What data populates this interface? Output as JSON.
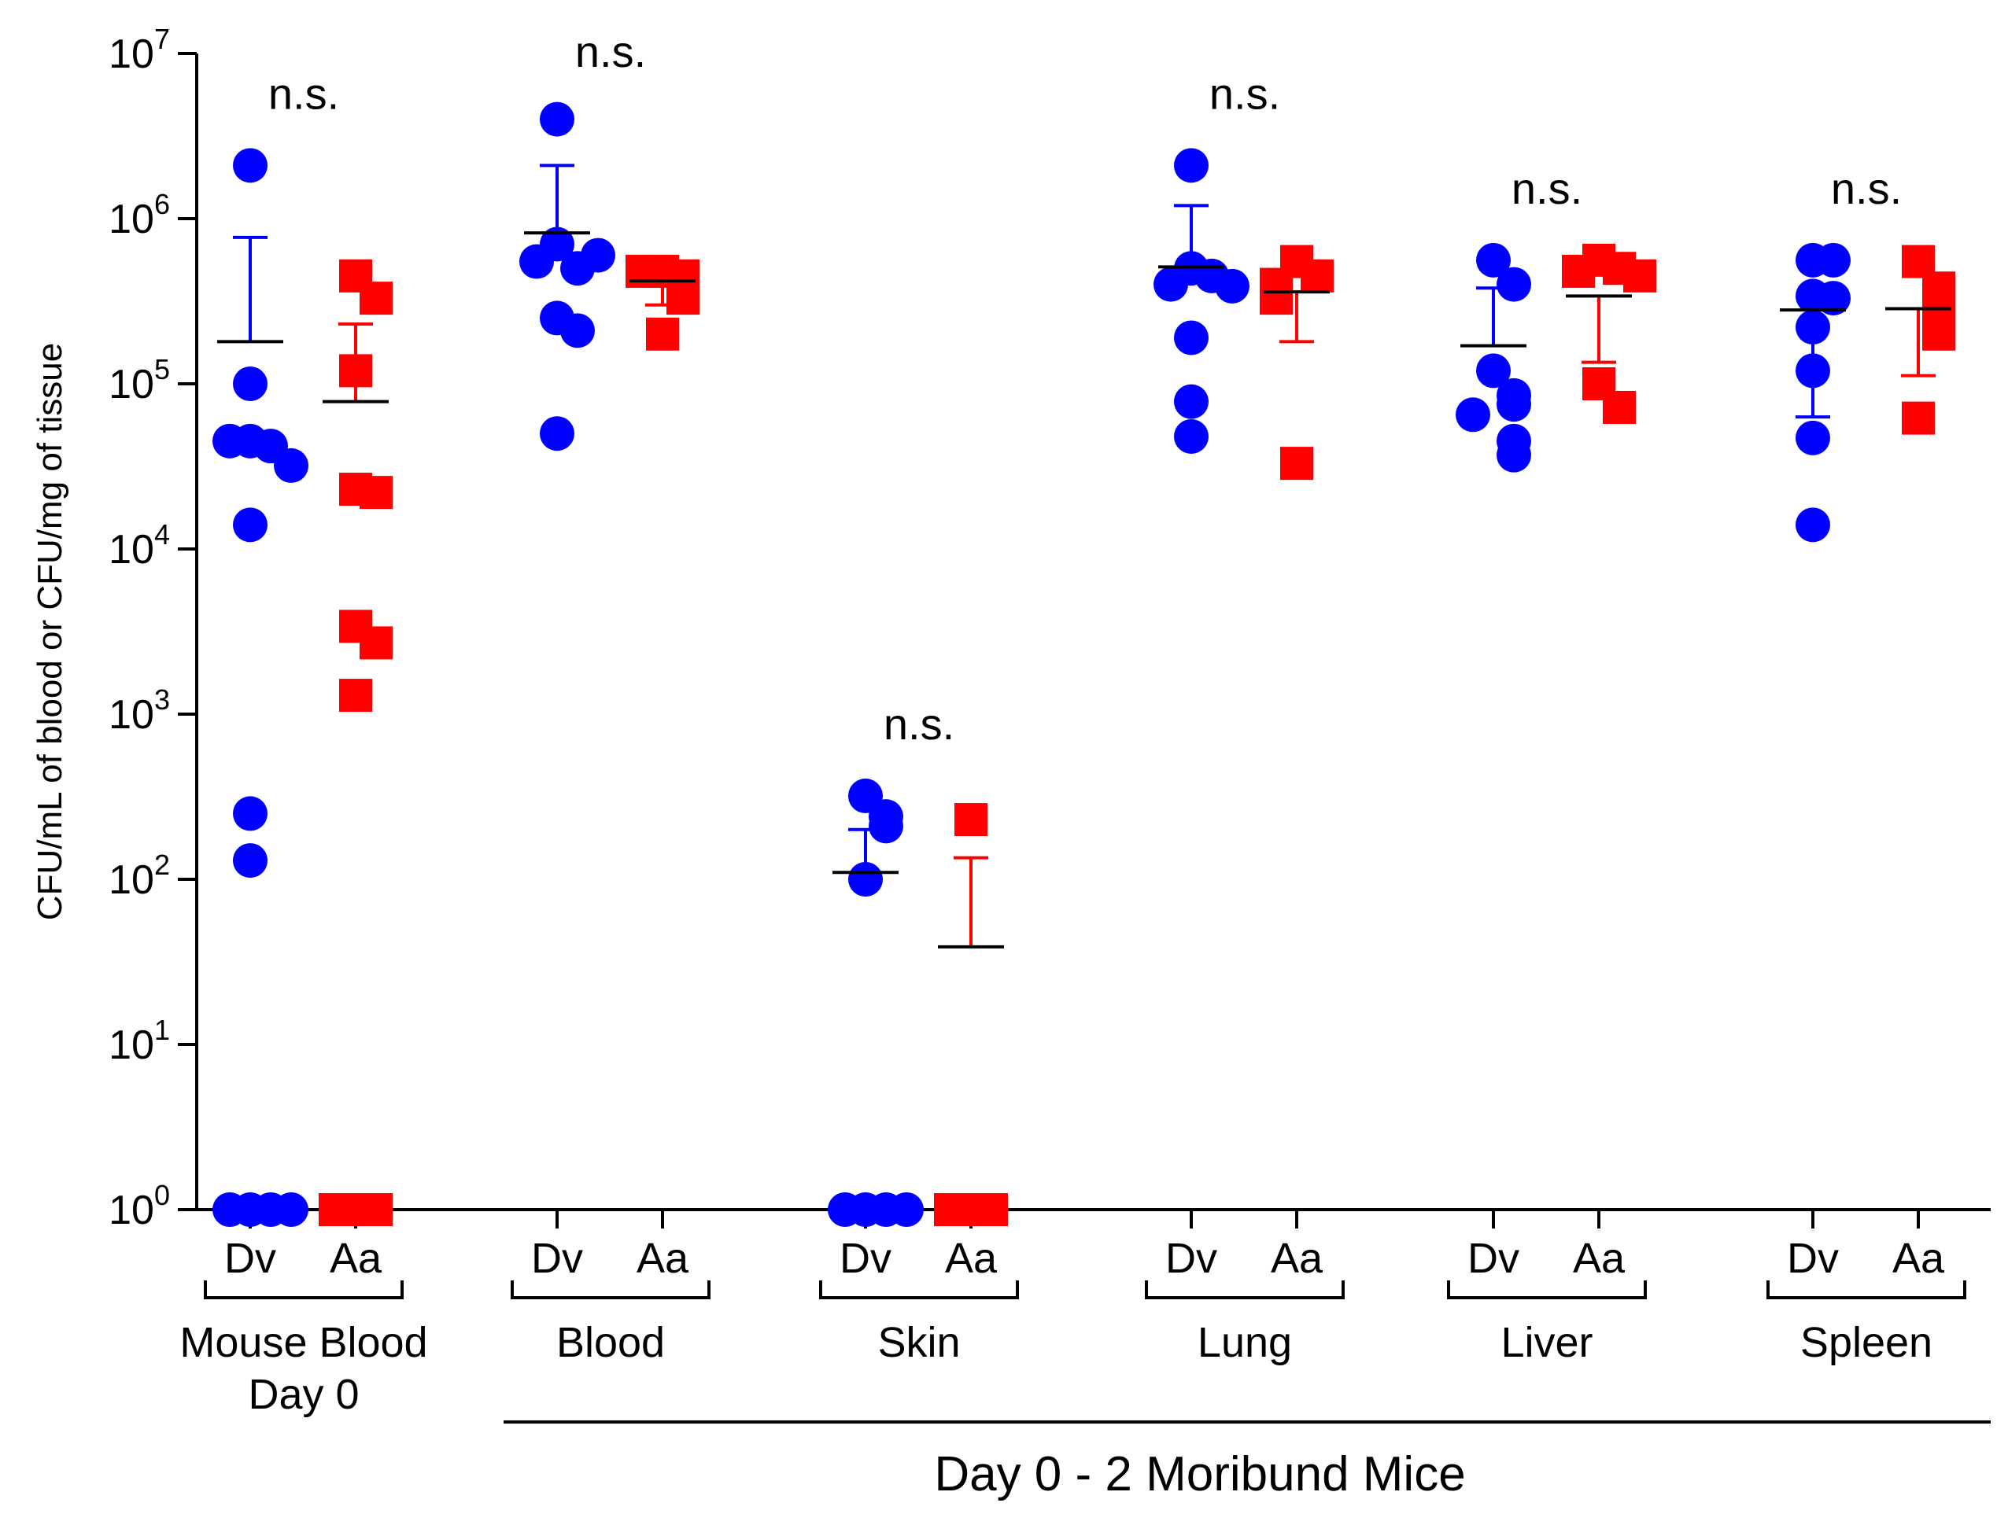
{
  "chart_data": {
    "type": "scatter",
    "title": "",
    "ylabel": "CFU/mL of blood or CFU/mg of tissue",
    "xlabel": "Day 0 - 2 Moribund Mice",
    "yscale": "log",
    "ylim": [
      1,
      10000000
    ],
    "y_ticks": [
      {
        "base": "10",
        "exp": "0",
        "value": 1
      },
      {
        "base": "10",
        "exp": "1",
        "value": 10
      },
      {
        "base": "10",
        "exp": "2",
        "value": 100
      },
      {
        "base": "10",
        "exp": "3",
        "value": 1000
      },
      {
        "base": "10",
        "exp": "4",
        "value": 10000
      },
      {
        "base": "10",
        "exp": "5",
        "value": 100000
      },
      {
        "base": "10",
        "exp": "6",
        "value": 1000000
      },
      {
        "base": "10",
        "exp": "7",
        "value": 10000000
      }
    ],
    "legend": [
      {
        "name": "Dv",
        "marker": "circle",
        "color": "#0000FF"
      },
      {
        "name": "Aa",
        "marker": "square",
        "color": "#FF0000"
      }
    ],
    "mean_line_color": "#000000",
    "groups": [
      {
        "label_lines": [
          "Mouse Blood",
          "Day 0"
        ],
        "significance": "n.s.",
        "series": [
          {
            "name": "Dv",
            "values": [
              2100000,
              100000,
              45000,
              42000,
              45000,
              32000,
              14000,
              250,
              130,
              1,
              1,
              1,
              1
            ],
            "mean": 180000,
            "error_upper": 770000
          },
          {
            "name": "Aa",
            "values": [
              450000,
              330000,
              120000,
              23000,
              22000,
              3400,
              2700,
              1300,
              1,
              1,
              1
            ],
            "mean": 78000,
            "error_upper": 230000
          }
        ]
      },
      {
        "label_lines": [
          "Blood"
        ],
        "significance": "n.s.",
        "series": [
          {
            "name": "Dv",
            "values": [
              4000000,
              700000,
              500000,
              550000,
              600000,
              250000,
              210000,
              50000
            ],
            "mean": 820000,
            "error_upper": 2100000
          },
          {
            "name": "Aa",
            "values": [
              480000,
              450000,
              480000,
              330000,
              200000
            ],
            "mean": 420000,
            "error_lower": 300000
          }
        ]
      },
      {
        "label_lines": [
          "Skin"
        ],
        "significance": "n.s.",
        "series": [
          {
            "name": "Dv",
            "values": [
              320,
              240,
              210,
              100,
              1,
              1,
              1,
              1
            ],
            "mean": 110,
            "error_upper": 200
          },
          {
            "name": "Aa",
            "values": [
              230,
              1,
              1,
              1
            ],
            "mean": 39,
            "error_upper": 135
          }
        ]
      },
      {
        "label_lines": [
          "Lung"
        ],
        "significance": "n.s.",
        "series": [
          {
            "name": "Dv",
            "values": [
              2100000,
              500000,
              450000,
              400000,
              390000,
              190000,
              78000,
              48000
            ],
            "mean": 510000,
            "error_upper": 1200000
          },
          {
            "name": "Aa",
            "values": [
              550000,
              450000,
              400000,
              330000,
              33000
            ],
            "mean": 360000,
            "error_lower": 180000
          }
        ]
      },
      {
        "label_lines": [
          "Liver"
        ],
        "significance": "n.s.",
        "series": [
          {
            "name": "Dv",
            "values": [
              560000,
              400000,
              120000,
              85000,
              75000,
              65000,
              45000,
              37000
            ],
            "mean": 170000,
            "error_upper": 380000
          },
          {
            "name": "Aa",
            "values": [
              560000,
              500000,
              480000,
              450000,
              100000,
              72000
            ],
            "mean": 340000,
            "error_lower": 135000
          }
        ]
      },
      {
        "label_lines": [
          "Spleen"
        ],
        "significance": "n.s.",
        "series": [
          {
            "name": "Dv",
            "values": [
              560000,
              560000,
              340000,
              330000,
              220000,
              120000,
              47000,
              14000
            ],
            "mean": 280000,
            "error_lower": 63000
          },
          {
            "name": "Aa",
            "values": [
              550000,
              380000,
              300000,
              250000,
              200000,
              62000
            ],
            "mean": 285000,
            "error_lower": 112000
          }
        ]
      }
    ]
  }
}
